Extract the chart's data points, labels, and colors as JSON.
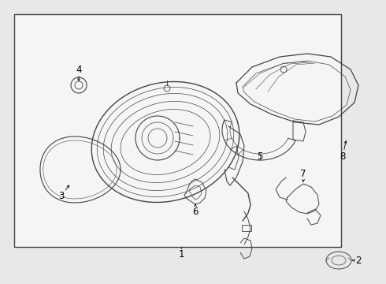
{
  "bg_color": "#e8e8e8",
  "box_bg": "#f5f5f5",
  "box_border": "#444444",
  "line_color": "#444444",
  "label_color": "#000000",
  "font_size_label": 8.5
}
